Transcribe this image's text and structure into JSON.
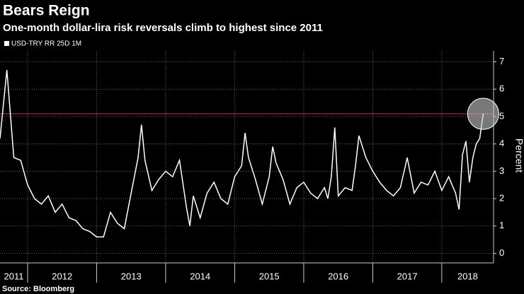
{
  "chart_data": {
    "type": "line",
    "title": "Bears Reign",
    "subtitle": "One-month dollar-lira risk reversals climb to highest since 2011",
    "y_label": "Percent",
    "source": "Source: Bloomberg",
    "x": [
      2011.6,
      2011.7,
      2011.8,
      2011.9,
      2012.0,
      2012.1,
      2012.2,
      2012.3,
      2012.4,
      2012.5,
      2012.6,
      2012.7,
      2012.8,
      2012.9,
      2013.0,
      2013.1,
      2013.2,
      2013.3,
      2013.4,
      2013.5,
      2013.6,
      2013.65,
      2013.7,
      2013.8,
      2013.9,
      2014.0,
      2014.1,
      2014.2,
      2014.3,
      2014.35,
      2014.4,
      2014.5,
      2014.6,
      2014.7,
      2014.8,
      2014.9,
      2015.0,
      2015.1,
      2015.15,
      2015.2,
      2015.3,
      2015.4,
      2015.5,
      2015.55,
      2015.6,
      2015.7,
      2015.8,
      2015.9,
      2016.0,
      2016.1,
      2016.2,
      2016.3,
      2016.35,
      2016.4,
      2016.45,
      2016.5,
      2016.6,
      2016.7,
      2016.75,
      2016.8,
      2016.9,
      2017.0,
      2017.1,
      2017.2,
      2017.3,
      2017.4,
      2017.5,
      2017.6,
      2017.7,
      2017.8,
      2017.9,
      2018.0,
      2018.1,
      2018.2,
      2018.25,
      2018.3,
      2018.35,
      2018.4,
      2018.45,
      2018.5,
      2018.55,
      2018.6
    ],
    "series": [
      {
        "name": "USD-TRY RR 25D 1M",
        "color": "#ffffff",
        "values": [
          4.2,
          6.7,
          3.5,
          3.4,
          2.5,
          2.0,
          1.8,
          2.1,
          1.5,
          1.8,
          1.3,
          1.2,
          0.9,
          0.8,
          0.6,
          0.6,
          1.5,
          1.1,
          0.9,
          2.2,
          3.5,
          4.7,
          3.4,
          2.3,
          2.7,
          3.0,
          2.8,
          3.4,
          1.7,
          1.0,
          2.1,
          1.3,
          2.2,
          2.6,
          2.0,
          1.8,
          2.8,
          3.2,
          4.4,
          3.5,
          2.7,
          1.8,
          2.8,
          3.9,
          3.3,
          2.7,
          1.8,
          2.4,
          2.6,
          2.2,
          2.0,
          2.4,
          2.0,
          2.8,
          4.6,
          2.1,
          2.4,
          2.3,
          3.2,
          4.3,
          3.5,
          3.0,
          2.6,
          2.3,
          2.1,
          2.4,
          3.5,
          2.2,
          2.6,
          2.5,
          3.0,
          2.3,
          2.8,
          2.2,
          1.6,
          3.6,
          4.1,
          2.6,
          3.5,
          4.0,
          4.2,
          5.1
        ]
      }
    ],
    "xlim": [
      2011.6,
      2018.75
    ],
    "xticks": [
      2012,
      2013,
      2014,
      2015,
      2016,
      2017,
      2018
    ],
    "year_labels": [
      "2011",
      "2012",
      "2013",
      "2014",
      "2015",
      "2016",
      "2017",
      "2018"
    ],
    "ylim": [
      -0.35,
      7.4
    ],
    "yticks": [
      0,
      1,
      2,
      3,
      4,
      5,
      6,
      7
    ],
    "reference_line": {
      "value": 5.1,
      "color": "#e03030"
    },
    "grid": true
  }
}
